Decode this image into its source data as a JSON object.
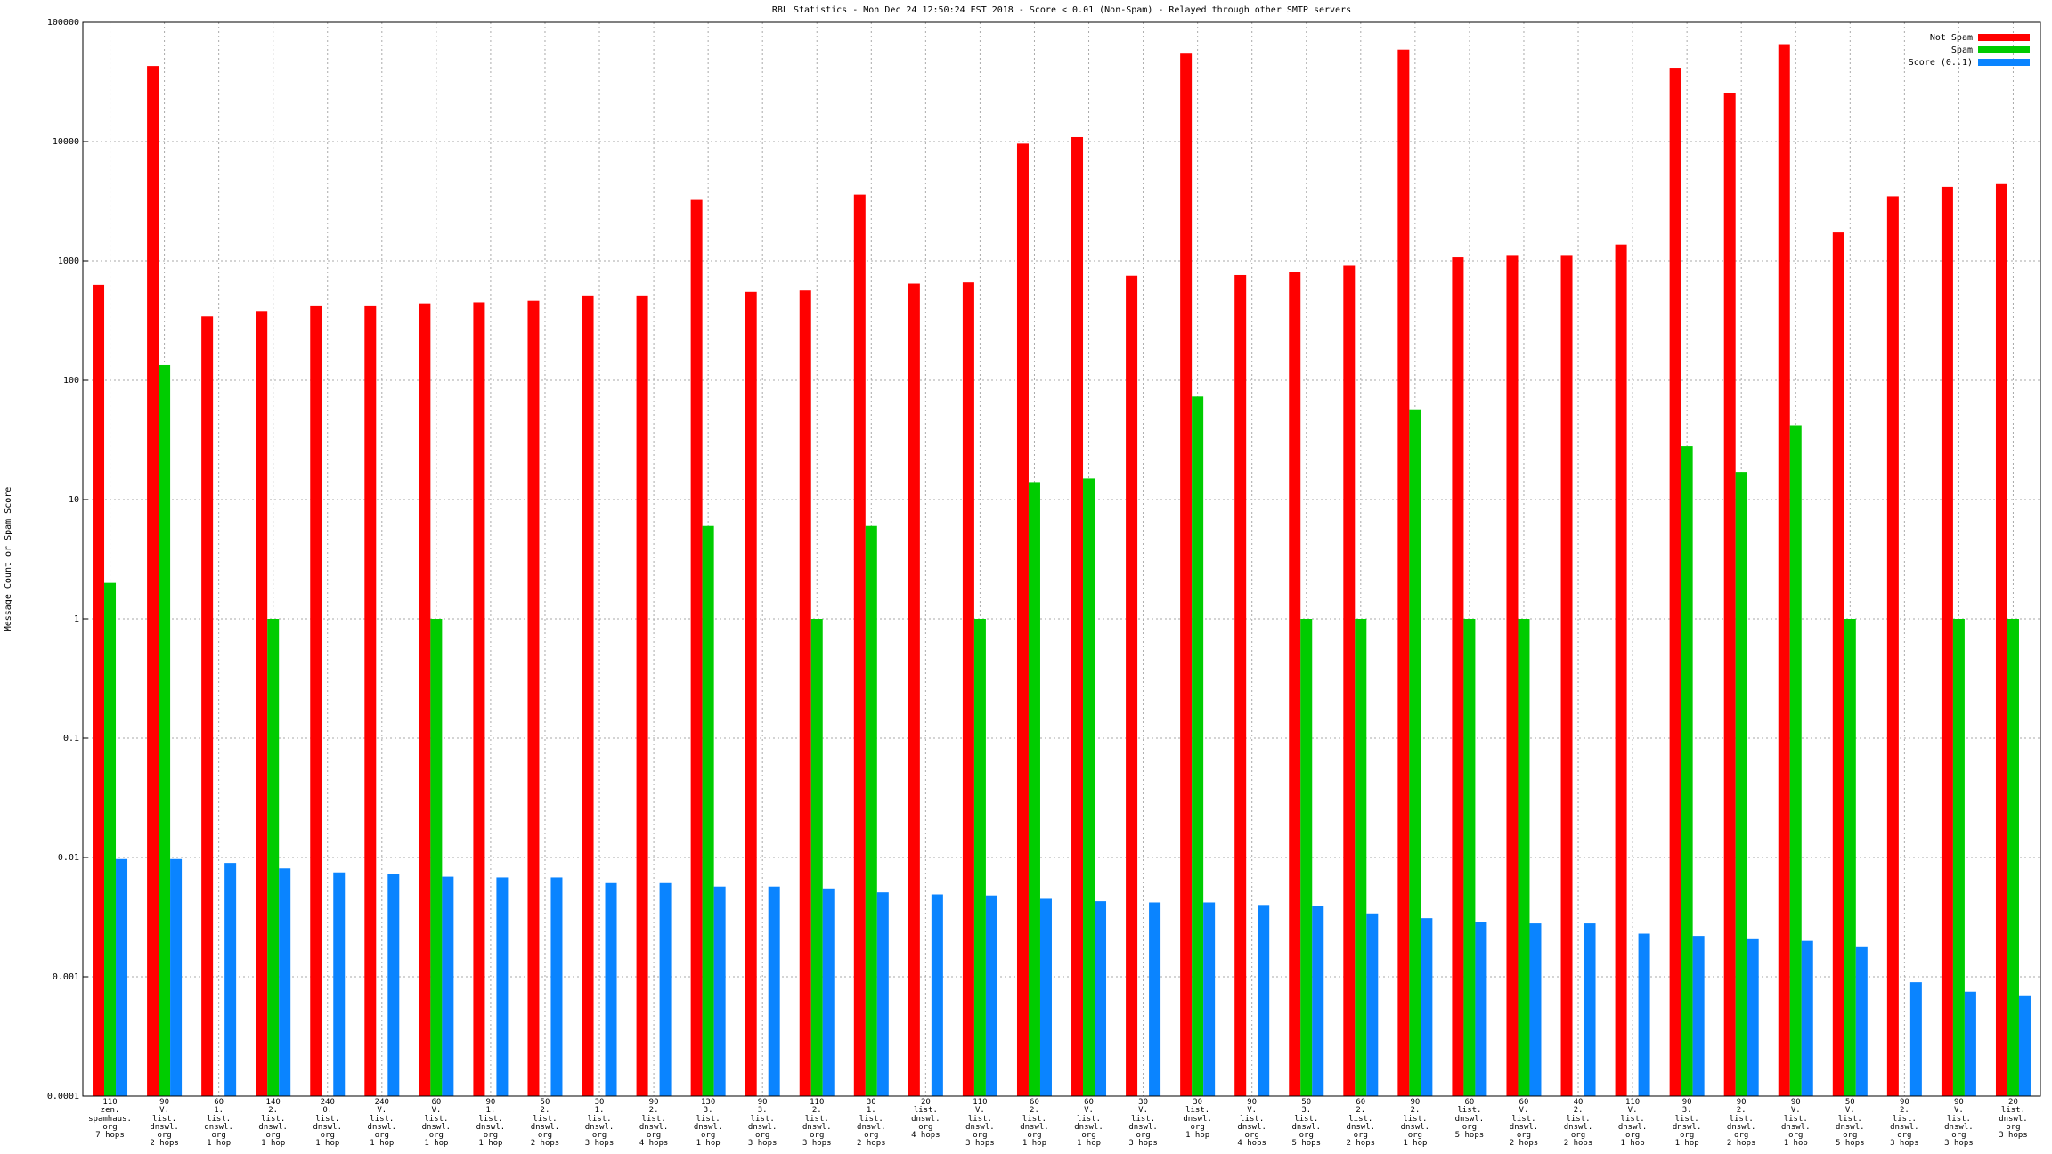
{
  "chart_data": {
    "type": "bar",
    "title": "RBL Statistics - Mon Dec 24 12:50:24 EST 2018 - Score < 0.01 (Non-Spam) - Relayed through other SMTP servers",
    "y_label": "Message Count or Spam Score",
    "categories": [
      "110\nzen.\nspamhaus.\norg\n7 hops",
      "90\nV.\nlist.\ndnswl.\norg\n2 hops",
      "60\n1.\nlist.\ndnswl.\norg\n1 hop",
      "140\n2.\nlist.\ndnswl.\norg\n1 hop",
      "240\n0.\nlist.\ndnswl.\norg\n1 hop",
      "240\nV.\nlist.\ndnswl.\norg\n1 hop",
      "60\nV.\nlist.\ndnswl.\norg\n1 hop",
      "90\n1.\nlist.\ndnswl.\norg\n1 hop",
      "50\n2.\nlist.\ndnswl.\norg\n2 hops",
      "30\n1.\nlist.\ndnswl.\norg\n3 hops",
      "90\n2.\nlist.\ndnswl.\norg\n4 hops",
      "130\n3.\nlist.\ndnswl.\norg\n1 hop",
      "90\n3.\nlist.\ndnswl.\norg\n3 hops",
      "110\n2.\nlist.\ndnswl.\norg\n3 hops",
      "30\n1.\nlist.\ndnswl.\norg\n2 hops",
      "20\nlist.\ndnswl.\norg\n4 hops",
      "110\nV.\nlist.\ndnswl.\norg\n3 hops",
      "60\n2.\nlist.\ndnswl.\norg\n1 hop",
      "60\nV.\nlist.\ndnswl.\norg\n1 hop",
      "30\nV.\nlist.\ndnswl.\norg\n3 hops",
      "30\nlist.\ndnswl.\norg\n1 hop",
      "90\nV.\nlist.\ndnswl.\norg\n4 hops",
      "50\n3.\nlist.\ndnswl.\norg\n5 hops",
      "60\n2.\nlist.\ndnswl.\norg\n2 hops",
      "90\n2.\nlist.\ndnswl.\norg\n1 hop",
      "60\nlist.\ndnswl.\norg\n5 hops",
      "60\nV.\nlist.\ndnswl.\norg\n2 hops",
      "40\n2.\nlist.\ndnswl.\norg\n2 hops",
      "110\nV.\nlist.\ndnswl.\norg\n1 hop",
      "90\n3.\nlist.\ndnswl.\norg\n1 hop",
      "90\n2.\nlist.\ndnswl.\norg\n2 hops",
      "90\nV.\nlist.\ndnswl.\norg\n1 hop",
      "50\nV.\nlist.\ndnswl.\norg\n5 hops",
      "90\n2.\nlist.\ndnswl.\norg\n3 hops",
      "90\nV.\nlist.\ndnswl.\norg\n3 hops",
      "20\nlist.\ndnswl.\norg\n3 hops"
    ],
    "series": [
      {
        "name": "Not Spam",
        "color": "#ff0000",
        "values": [
          630,
          43000,
          343,
          380,
          417,
          417,
          441,
          450,
          464,
          513,
          513,
          3240,
          550,
          565,
          3590,
          645,
          660,
          9600,
          10900,
          750,
          54600,
          760,
          810,
          910,
          59000,
          1070,
          1120,
          1120,
          1370,
          41600,
          25600,
          65600,
          1730,
          3480,
          4170,
          4400
        ]
      },
      {
        "name": "Spam",
        "color": "#00cc00",
        "values": [
          2,
          134,
          null,
          1,
          null,
          null,
          1,
          null,
          null,
          null,
          null,
          6,
          null,
          1,
          6,
          null,
          1,
          14,
          15,
          null,
          73,
          null,
          1,
          1,
          57,
          1,
          1,
          null,
          null,
          28,
          17,
          42,
          1,
          null,
          1,
          1
        ]
      },
      {
        "name": "Score (0..1)",
        "color": "#0a84ff",
        "values": [
          0.0097,
          0.0097,
          0.009,
          0.0081,
          0.0075,
          0.0073,
          0.0069,
          0.0068,
          0.0068,
          0.0061,
          0.0061,
          0.0057,
          0.0057,
          0.0055,
          0.0051,
          0.0049,
          0.0048,
          0.0045,
          0.0043,
          0.0042,
          0.0042,
          0.004,
          0.0039,
          0.0034,
          0.0031,
          0.0029,
          0.0028,
          0.0028,
          0.0023,
          0.0022,
          0.0021,
          0.002,
          0.0018,
          0.0009,
          0.00075,
          0.0007
        ]
      }
    ],
    "ylim": [
      0.0001,
      100000
    ],
    "yticks": [
      0.0001,
      0.001,
      0.01,
      0.1,
      1,
      10,
      100,
      1000,
      10000,
      100000
    ],
    "log_scale": true,
    "grid": true,
    "legend": "top-right"
  }
}
